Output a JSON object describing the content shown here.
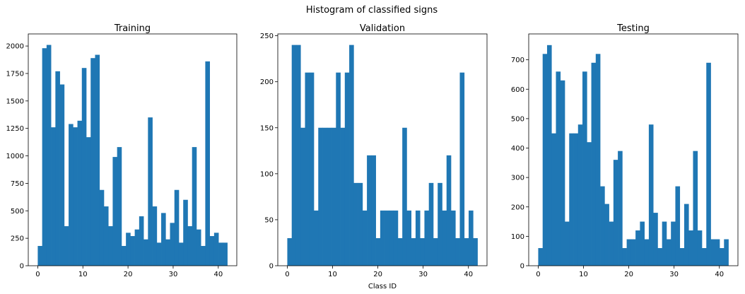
{
  "figure": {
    "suptitle": "Histogram of classified signs",
    "bar_color": "#1f77b4"
  },
  "chart_data": [
    {
      "type": "bar",
      "title": "Training",
      "xlabel": "",
      "ylabel": "",
      "bins": 43,
      "x_range": [
        0,
        42
      ],
      "xlim": [
        -2.1,
        44.1
      ],
      "ylim": [
        0,
        2110
      ],
      "xticks": [
        0,
        10,
        20,
        30,
        40
      ],
      "yticks": [
        0,
        250,
        500,
        750,
        1000,
        1250,
        1500,
        1750,
        2000
      ],
      "values": [
        180,
        1980,
        2010,
        1260,
        1770,
        1650,
        360,
        1290,
        1260,
        1320,
        1800,
        1170,
        1890,
        1920,
        690,
        540,
        360,
        990,
        1080,
        180,
        300,
        270,
        330,
        450,
        240,
        1350,
        540,
        210,
        480,
        240,
        390,
        690,
        210,
        600,
        360,
        1080,
        330,
        180,
        1860,
        270,
        300,
        210,
        210
      ]
    },
    {
      "type": "bar",
      "title": "Validation",
      "xlabel": "Class ID",
      "ylabel": "",
      "bins": 43,
      "x_range": [
        0,
        42
      ],
      "xlim": [
        -2.1,
        44.1
      ],
      "ylim": [
        0,
        252
      ],
      "xticks": [
        0,
        10,
        20,
        30,
        40
      ],
      "yticks": [
        0,
        50,
        100,
        150,
        200,
        250
      ],
      "values": [
        30,
        240,
        240,
        150,
        210,
        210,
        60,
        150,
        150,
        150,
        150,
        210,
        150,
        210,
        240,
        90,
        90,
        60,
        120,
        120,
        30,
        60,
        60,
        60,
        60,
        30,
        150,
        60,
        30,
        60,
        30,
        60,
        90,
        30,
        90,
        60,
        120,
        60,
        30,
        210,
        30,
        60,
        30
      ]
    },
    {
      "type": "bar",
      "title": "Testing",
      "xlabel": "",
      "ylabel": "",
      "bins": 43,
      "x_range": [
        0,
        42
      ],
      "xlim": [
        -2.1,
        44.1
      ],
      "ylim": [
        0,
        788
      ],
      "xticks": [
        0,
        10,
        20,
        30,
        40
      ],
      "yticks": [
        0,
        100,
        200,
        300,
        400,
        500,
        600,
        700
      ],
      "values": [
        60,
        720,
        750,
        450,
        660,
        630,
        150,
        450,
        450,
        480,
        660,
        420,
        690,
        720,
        270,
        210,
        150,
        360,
        390,
        60,
        90,
        90,
        120,
        150,
        90,
        480,
        180,
        60,
        150,
        90,
        150,
        270,
        60,
        210,
        120,
        390,
        120,
        60,
        690,
        90,
        90,
        60,
        90
      ]
    }
  ]
}
